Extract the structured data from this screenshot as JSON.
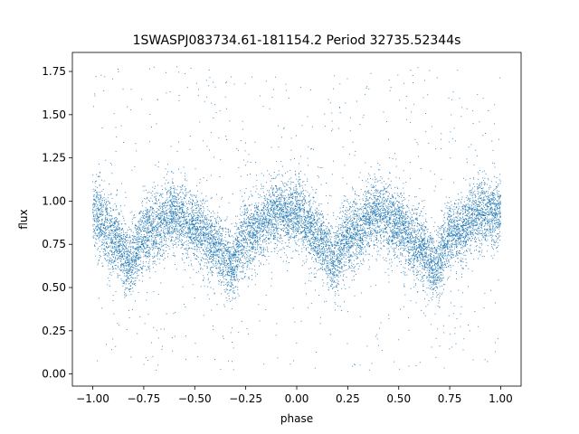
{
  "chart_data": {
    "type": "scatter",
    "title": "1SWASPJ083734.61-181154.2 Period 32735.52344s",
    "xlabel": "phase",
    "ylabel": "flux",
    "xlim": [
      -1.1,
      1.1
    ],
    "ylim": [
      -0.07,
      1.86
    ],
    "x_ticks": [
      -1.0,
      -0.75,
      -0.5,
      -0.25,
      0.0,
      0.25,
      0.5,
      0.75,
      1.0
    ],
    "x_tick_labels": [
      "−1.00",
      "−0.75",
      "−0.50",
      "−0.25",
      "0.00",
      "0.25",
      "0.50",
      "0.75",
      "1.00"
    ],
    "y_ticks": [
      0.0,
      0.25,
      0.5,
      0.75,
      1.0,
      1.25,
      1.5,
      1.75
    ],
    "y_tick_labels": [
      "0.00",
      "0.25",
      "0.50",
      "0.75",
      "1.00",
      "1.25",
      "1.50",
      "1.75"
    ],
    "grid": false,
    "marker_color": "#1f77b4",
    "x_range_data": [
      -1.0,
      1.0
    ],
    "series": [
      {
        "name": "",
        "profile_phase": [
          0.0,
          0.1,
          0.18,
          0.25,
          0.4,
          0.5,
          0.6,
          0.68,
          0.75,
          0.9,
          1.0
        ],
        "profile_flux": [
          0.93,
          0.8,
          0.65,
          0.8,
          0.93,
          0.86,
          0.73,
          0.62,
          0.8,
          0.93,
          0.93
        ],
        "scatter_sigma": 0.1,
        "outlier_flux_range": [
          0.02,
          1.78
        ],
        "point_count": 12000
      }
    ]
  }
}
